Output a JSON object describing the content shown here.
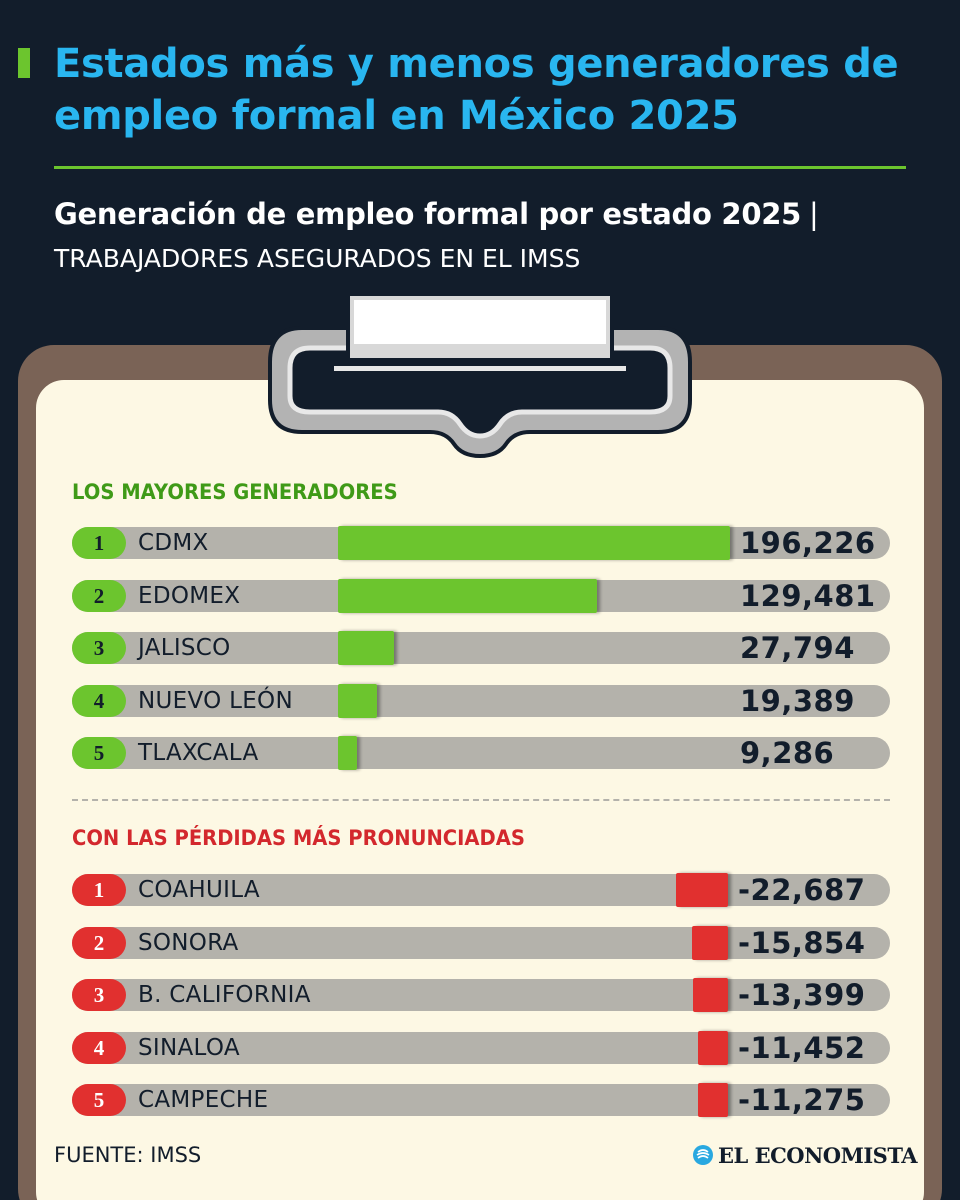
{
  "header": {
    "title": "Estados más y menos generadores de empleo formal en México 2025",
    "subtitle": "Generación de empleo formal por estado 2025",
    "subtitle_separator": "|",
    "unit": "TRABAJADORES ASEGURADOS EN EL IMSS"
  },
  "colors": {
    "background": "#121d2b",
    "title": "#29b6f0",
    "accent_green": "#6cc52e",
    "accent_red": "#e1302f",
    "paper": "#fdf8e4",
    "board": "#7a6356",
    "track": "#b4b2ab"
  },
  "chart_data": [
    {
      "type": "bar",
      "orientation": "horizontal",
      "title": "LOS MAYORES GENERADORES",
      "ranks": [
        "1",
        "2",
        "3",
        "4",
        "5"
      ],
      "categories": [
        "CDMX",
        "EDOMEX",
        "JALISCO",
        "NUEVO LEÓN",
        "TLAXCALA"
      ],
      "values": [
        196226,
        129481,
        27794,
        19389,
        9286
      ],
      "labels": [
        "196,226",
        "129,481",
        "27,794",
        "19,389",
        "9,286"
      ],
      "xlim": [
        0,
        196226
      ],
      "color": "#6cc52e"
    },
    {
      "type": "bar",
      "orientation": "horizontal",
      "title": "CON LAS PÉRDIDAS MÁS PRONUNCIADAS",
      "ranks": [
        "1",
        "2",
        "3",
        "4",
        "5"
      ],
      "categories": [
        "COAHUILA",
        "SONORA",
        "B. CALIFORNIA",
        "SINALOA",
        "CAMPECHE"
      ],
      "values": [
        -22687,
        -15854,
        -13399,
        -11452,
        -11275
      ],
      "labels": [
        "-22,687",
        "-15,854",
        "-13,399",
        "-11,452",
        "-11,275"
      ],
      "xlim": [
        -196226,
        0
      ],
      "color": "#e1302f"
    }
  ],
  "footer": {
    "source": "FUENTE: IMSS",
    "brand": "EL ECONOMISTA",
    "brand_icon": "el-economista-logo-icon"
  }
}
